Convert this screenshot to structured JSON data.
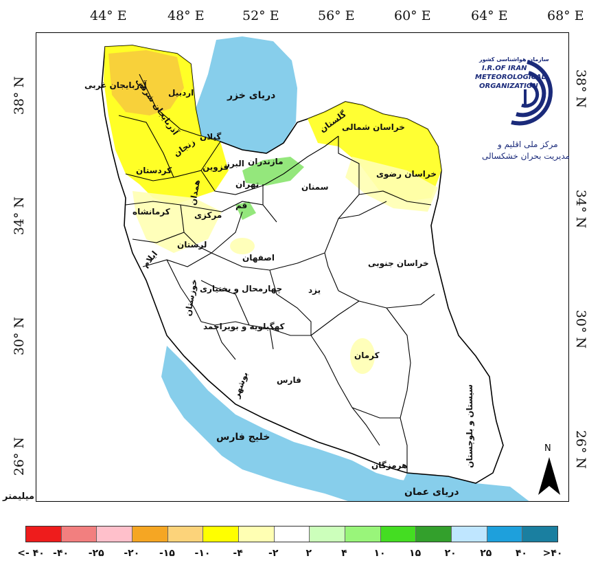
{
  "axes": {
    "top_ticks": [
      "44° E",
      "48° E",
      "52° E",
      "56° E",
      "60° E",
      "64° E",
      "68° E"
    ],
    "left_ticks": [
      "38° N",
      "34° N",
      "30° N",
      "26° N"
    ],
    "right_ticks": [
      "38° N",
      "34° N",
      "30° N",
      "26° N"
    ]
  },
  "unit_label": "میلیمتر",
  "water_bodies": [
    "دریای خزر",
    "خلیج فارس",
    "دریای عمان"
  ],
  "provinces": [
    "آذربایجان غربی",
    "آذربایجان شرقی",
    "اردبیل",
    "گیلان",
    "زنجان",
    "کردستان",
    "قزوین",
    "البرز",
    "تهران",
    "مازندران",
    "گلستان",
    "خراسان شمالی",
    "خراسان رضوی",
    "سمنان",
    "همدان",
    "کرمانشاه",
    "مرکزی",
    "قم",
    "لرستان",
    "ایلام",
    "اصفهان",
    "خراسان جنوبی",
    "یزد",
    "خوزستان",
    "چهارمحال و بختیاری",
    "کهگیلویه و بویراحمد",
    "فارس",
    "بوشهر",
    "کرمان",
    "سیستان و بلوچستان",
    "هرمزگان"
  ],
  "logo": {
    "line1": "سازمان هواشناسی کشور",
    "line2": "I.R.OF IRAN",
    "line3": "METEOROLOGICAL",
    "line4": "ORGANIZATION",
    "caption1": "مرکز ملی اقلیم و",
    "caption2": "مدیریت بحران خشکسالی"
  },
  "north_label": "N",
  "legend": {
    "colors": [
      "#ee1c1c",
      "#f27f7f",
      "#ffc0cb",
      "#f5a623",
      "#fcd37a",
      "#ffff00",
      "#ffffb3",
      "#ffffff",
      "#ccffbb",
      "#99f57a",
      "#44dd22",
      "#33a02c",
      "#bfe6ff",
      "#1ea0dc",
      "#1a7fa0"
    ],
    "labels": [
      "<- ۴۰",
      "-۴۰",
      "-۲۵",
      "-۲۰",
      "-۱۵",
      "-۱۰",
      "-۴",
      "-۲",
      "۲",
      "۴",
      "۱۰",
      "۱۵",
      "۲۰",
      "۲۵",
      "۴۰",
      ">۴۰"
    ]
  }
}
